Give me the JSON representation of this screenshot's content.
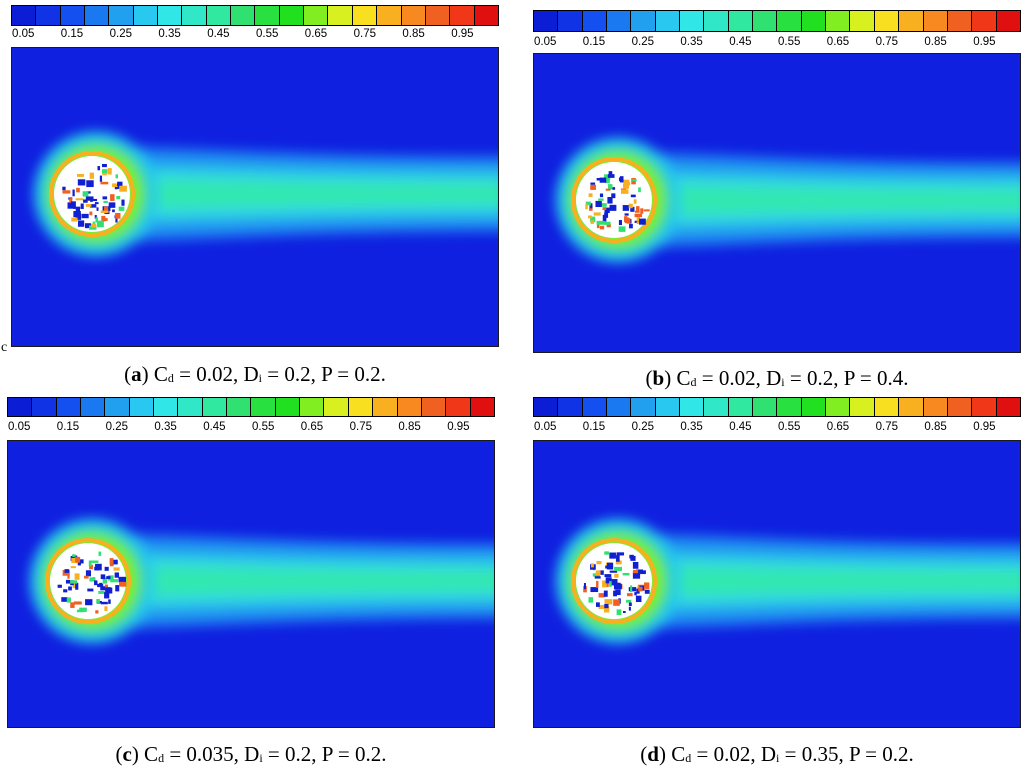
{
  "colorbar": {
    "colors": [
      "#0b1ed6",
      "#1033e6",
      "#1450f0",
      "#1a78f0",
      "#21a0f0",
      "#28c8f0",
      "#30e6e6",
      "#30e8c8",
      "#30e8a0",
      "#30e070",
      "#28e040",
      "#20e020",
      "#80ee20",
      "#d8f020",
      "#f8e020",
      "#f8b020",
      "#f88820",
      "#f06020",
      "#f03818",
      "#e01010"
    ],
    "ticks": [
      "0.05",
      "0.15",
      "0.25",
      "0.35",
      "0.45",
      "0.55",
      "0.65",
      "0.75",
      "0.85",
      "0.95"
    ]
  },
  "panels": [
    {
      "id": "a",
      "letter": "a",
      "cd": "0.02",
      "di": "0.2",
      "p": "0.2"
    },
    {
      "id": "b",
      "letter": "b",
      "cd": "0.02",
      "di": "0.2",
      "p": "0.4"
    },
    {
      "id": "c",
      "letter": "c",
      "cd": "0.035",
      "di": "0.2",
      "p": "0.2"
    },
    {
      "id": "d",
      "letter": "d",
      "cd": "0.02",
      "di": "0.35",
      "p": "0.2"
    }
  ],
  "stray_char": "c"
}
